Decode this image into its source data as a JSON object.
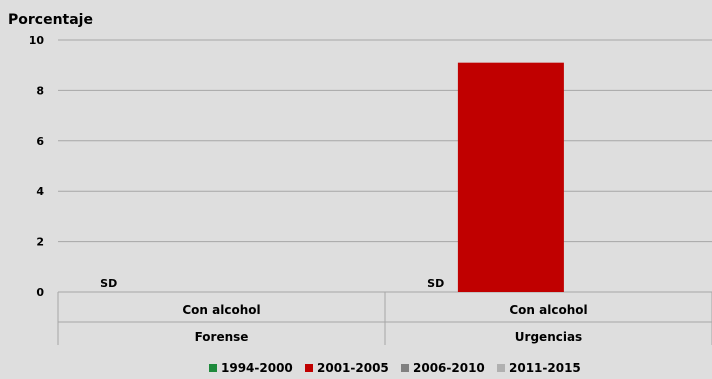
{
  "chart_data": {
    "type": "bar",
    "ylabel": "Porcentaje",
    "ylim": [
      0,
      10
    ],
    "yticks": [
      "0",
      "2",
      "4",
      "6",
      "8",
      "10"
    ],
    "grid": true,
    "legend_position": "bottom",
    "groups": [
      {
        "label": "Forense",
        "categories": [
          {
            "label": "Con alcohol"
          }
        ]
      },
      {
        "label": "Urgencias",
        "categories": [
          {
            "label": "Con alcohol"
          }
        ]
      }
    ],
    "series": [
      {
        "name": "1994-2000",
        "color": "#1e8a3c",
        "values": [
          null,
          null
        ],
        "labels": [
          "SD",
          "SD"
        ]
      },
      {
        "name": "2001-2005",
        "color": "#c00000",
        "values": [
          null,
          9.1
        ],
        "labels": [
          "",
          ""
        ]
      },
      {
        "name": "2006-2010",
        "color": "#808080",
        "values": [
          null,
          null
        ],
        "labels": [
          "",
          ""
        ]
      },
      {
        "name": "2011-2015",
        "color": "#b0b0b0",
        "values": [
          null,
          null
        ],
        "labels": [
          "",
          ""
        ]
      }
    ]
  }
}
